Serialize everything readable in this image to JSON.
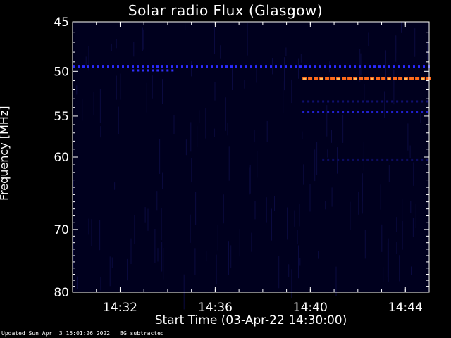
{
  "chart_data": {
    "type": "heatmap",
    "title": "Solar radio Flux (Glasgow)",
    "xlabel": "Start Time (03-Apr-22 14:30:00)",
    "ylabel": "Frequency [MHz]",
    "x_ticks": [
      "14:32",
      "14:36",
      "14:40",
      "14:44"
    ],
    "y_ticks": [
      "45",
      "50",
      "55",
      "60",
      "70",
      "80"
    ],
    "ylim": [
      45,
      80
    ],
    "y_scale": "log",
    "x_range_minutes": [
      30.0,
      45.0
    ],
    "colormap": "blue-to-orange",
    "features": [
      {
        "frequency_mhz": 49.5,
        "start": "14:30",
        "end": "14:45",
        "intensity": "low",
        "color": "#2a2aff"
      },
      {
        "frequency_mhz": 49.9,
        "start": "14:32:30",
        "end": "14:34:20",
        "intensity": "low",
        "color": "#3030ff"
      },
      {
        "frequency_mhz": 50.8,
        "start": "14:39:40",
        "end": "14:45",
        "intensity": "high",
        "color": "#ff6a1a"
      },
      {
        "frequency_mhz": 53.3,
        "start": "14:39:40",
        "end": "14:45",
        "intensity": "very-low",
        "color": "#101070"
      },
      {
        "frequency_mhz": 54.5,
        "start": "14:39:40",
        "end": "14:45",
        "intensity": "low",
        "color": "#2020d0"
      },
      {
        "frequency_mhz": 60.4,
        "start": "14:40:30",
        "end": "14:45",
        "intensity": "very-low",
        "color": "#0c0c60"
      }
    ]
  },
  "footer": {
    "updated": "Updated Sun Apr  3 15:01:26 2022",
    "note": "BG subtracted"
  }
}
